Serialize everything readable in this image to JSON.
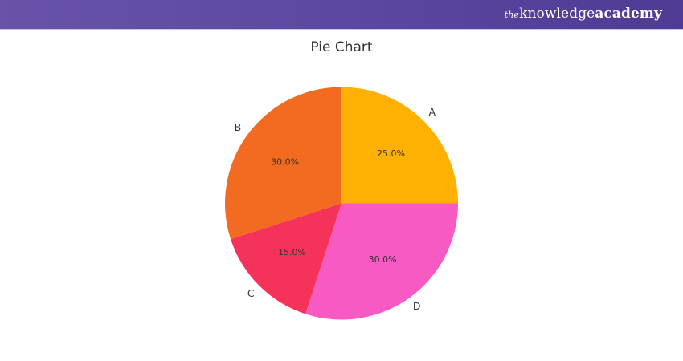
{
  "header": {
    "brand_prefix": "the",
    "brand_main": "knowledge",
    "brand_bold": "academy"
  },
  "chart_data": {
    "type": "pie",
    "title": "Pie Chart",
    "categories": [
      "A",
      "B",
      "C",
      "D"
    ],
    "values": [
      25,
      30,
      15,
      30
    ],
    "labels_pct": [
      "25.0%",
      "30.0%",
      "15.0%",
      "30.0%"
    ],
    "colors": [
      "#FFB000",
      "#F26B21",
      "#F5325A",
      "#F75AC3"
    ],
    "start_angle": 0,
    "direction": "counterclockwise",
    "legend": "none"
  }
}
